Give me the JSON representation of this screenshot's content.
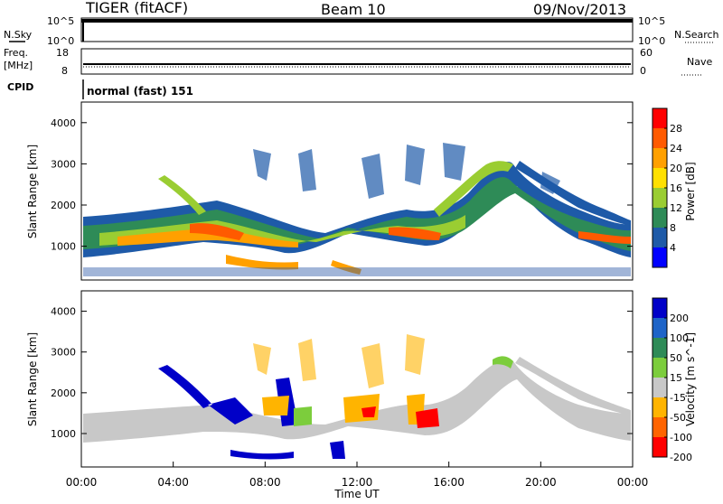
{
  "header": {
    "station": "TIGER (fitACF)",
    "beam": "Beam 10",
    "date": "09/Nov/2013"
  },
  "strip_labels": {
    "nsky": "N.Sky",
    "nsearch": "N.Search",
    "freq": "Freq.",
    "freq_unit": "[MHz]",
    "nave": "Nave",
    "cpid": "CPID",
    "cpid_value": "normal (fast) 151"
  },
  "chart_data": [
    {
      "type": "line",
      "name": "noise",
      "left_ticks": [
        "10^5",
        "10^0"
      ],
      "right_ticks": [
        "10^5",
        "10^0"
      ],
      "scale": "log"
    },
    {
      "type": "line",
      "name": "frequency",
      "left_ticks": [
        "18",
        "8"
      ],
      "right_ticks": [
        "60",
        "0"
      ],
      "frequency_mhz_approx": 11.5,
      "nave_approx": 25
    },
    {
      "type": "heatmap",
      "name": "power",
      "ylabel": "Slant Range [km]",
      "ylim": [
        180,
        4500
      ],
      "yticks": [
        1000,
        2000,
        3000,
        4000
      ],
      "x_ticks": [
        "00:00",
        "04:00",
        "08:00",
        "12:00",
        "16:00",
        "20:00",
        "00:00"
      ],
      "xlim_hours": [
        0,
        24
      ],
      "colorbar": {
        "label": "Power [dB]",
        "ticks": [
          "28",
          "24",
          "20",
          "16",
          "12",
          "8",
          "4"
        ],
        "colors": [
          "#ff0000",
          "#ff5a00",
          "#ffa000",
          "#ffe000",
          "#9acd32",
          "#2e8b57",
          "#1e5aa8",
          "#0000ff"
        ]
      }
    },
    {
      "type": "heatmap",
      "name": "velocity",
      "ylabel": "Slant Range [km]",
      "ylim": [
        180,
        4500
      ],
      "yticks": [
        1000,
        2000,
        3000,
        4000
      ],
      "x_ticks": [
        "00:00",
        "04:00",
        "08:00",
        "12:00",
        "16:00",
        "20:00",
        "00:00"
      ],
      "xlim_hours": [
        0,
        24
      ],
      "xlabel": "Time UT",
      "colorbar": {
        "label": "Velocity [m s^-1]",
        "ticks": [
          "200",
          "100",
          "50",
          "15",
          "-15",
          "-50",
          "-100",
          "-200"
        ],
        "colors": [
          "#0000c8",
          "#1e64c8",
          "#2e8b57",
          "#7ccd3c",
          "#c8c8c8",
          "#ffb400",
          "#ff6400",
          "#ff0000"
        ]
      }
    }
  ]
}
